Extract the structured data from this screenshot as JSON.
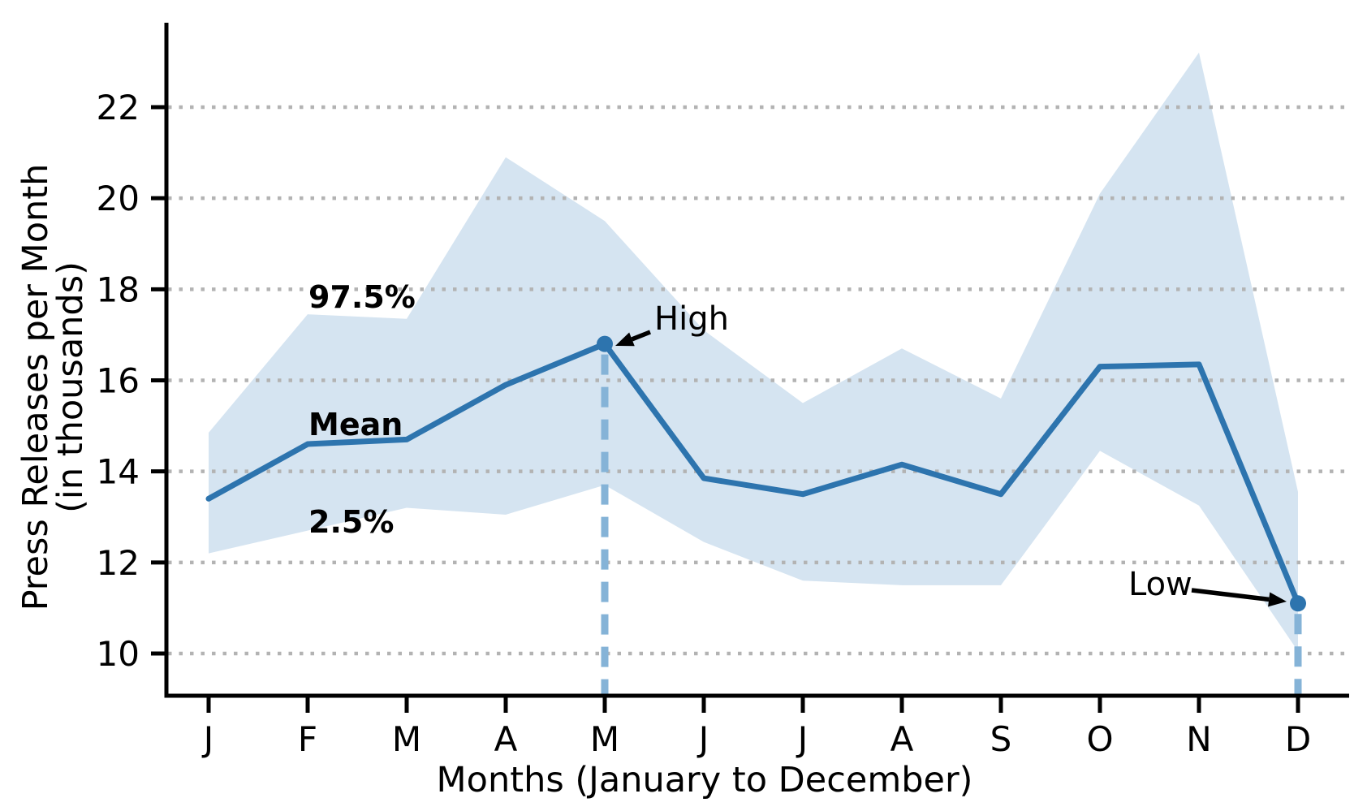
{
  "chart_data": {
    "type": "line",
    "title": "",
    "xlabel": "Months (January to December)",
    "ylabel_line1": "Press Releases per Month",
    "ylabel_line2": "(in thousands)",
    "x_categories": [
      "J",
      "F",
      "M",
      "A",
      "M",
      "J",
      "J",
      "A",
      "S",
      "O",
      "N",
      "D"
    ],
    "series": [
      {
        "name": "Mean",
        "values": [
          13.4,
          14.6,
          14.7,
          15.9,
          16.8,
          13.85,
          13.5,
          14.15,
          13.5,
          16.3,
          16.35,
          11.1
        ]
      },
      {
        "name": "2.5%",
        "values": [
          12.2,
          12.7,
          13.2,
          13.05,
          13.7,
          12.45,
          11.6,
          11.5,
          11.5,
          14.45,
          13.25,
          10.05
        ]
      },
      {
        "name": "97.5%",
        "values": [
          14.85,
          17.45,
          17.35,
          20.9,
          19.5,
          17.1,
          15.5,
          16.7,
          15.6,
          20.1,
          23.2,
          13.55
        ]
      }
    ],
    "band_labels": {
      "upper": "97.5%",
      "mean": "Mean",
      "lower": "2.5%"
    },
    "annotations": {
      "high": {
        "label": "High",
        "month_index": 4,
        "value": 16.8
      },
      "low": {
        "label": "Low",
        "month_index": 11,
        "value": 11.1
      }
    },
    "yticks": [
      10,
      12,
      14,
      16,
      18,
      20,
      22
    ],
    "ylim": [
      9.1,
      23.9
    ],
    "grid": "horizontal dotted",
    "legend": "none",
    "colors": {
      "mean_line": "#2d74ae",
      "band_fill": "#d5e4f1",
      "dropline": "#85b3d7",
      "gridline": "#b3b3b3",
      "label_blue": "#1f6fad",
      "axis": "#000000",
      "annotation_text": "#000000",
      "background": "#ffffff"
    }
  }
}
